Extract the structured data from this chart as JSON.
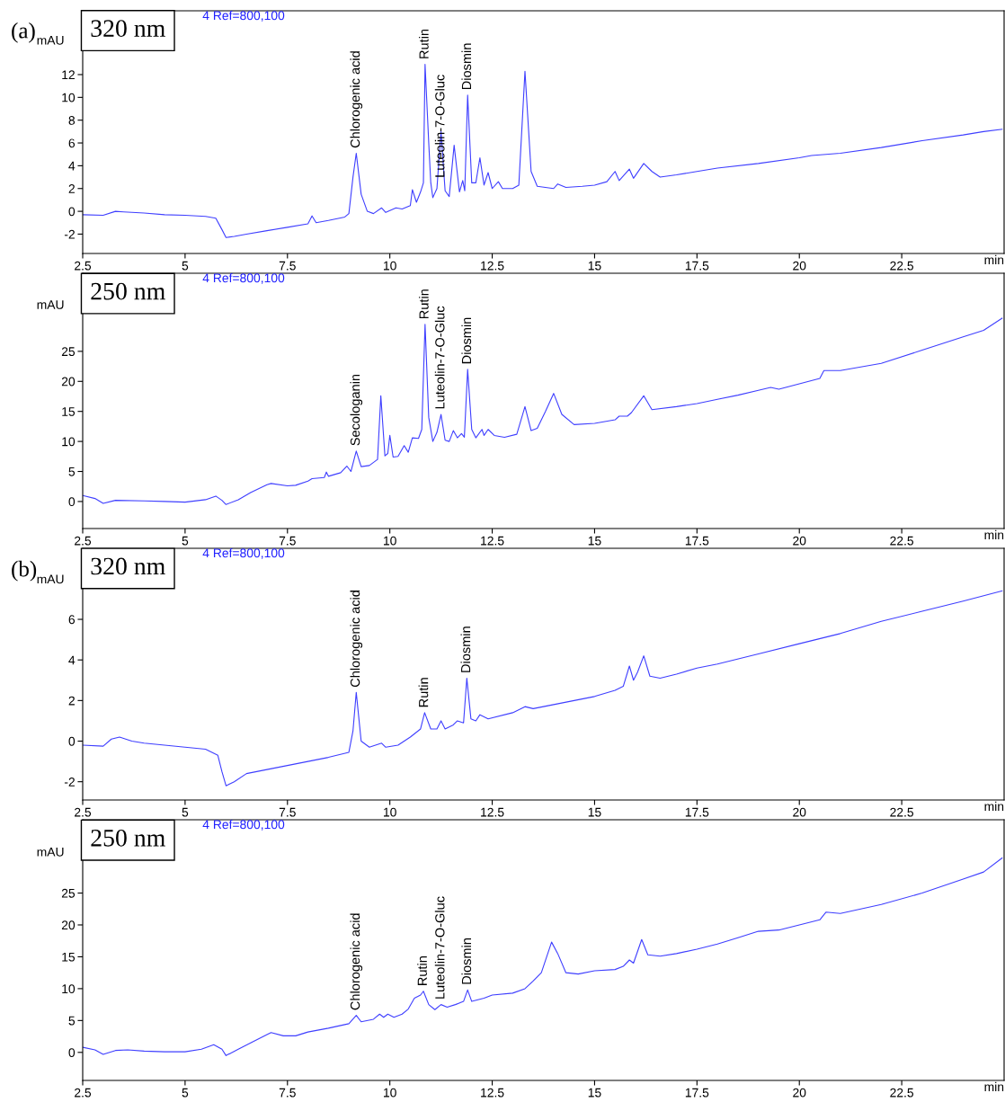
{
  "chart_data": [
    {
      "type": "line",
      "title": "320 nm",
      "subtitle": "(a)",
      "xlabel": "min",
      "ylabel": "mAU",
      "xlim": [
        2.5,
        25
      ],
      "xticks": [
        2.5,
        5,
        7.5,
        10,
        12.5,
        15,
        17.5,
        20,
        22.5
      ],
      "ylim": [
        -3.7,
        17.6
      ],
      "yticks": [
        -2,
        0,
        2,
        4,
        6,
        8,
        10,
        12
      ],
      "grid": false,
      "legend": false,
      "x": [
        2.5,
        3.0,
        3.3,
        3.5,
        4.0,
        4.5,
        5.0,
        5.5,
        5.75,
        5.9,
        6.0,
        6.2,
        6.5,
        7.0,
        7.5,
        8.0,
        8.1,
        8.2,
        8.5,
        8.9,
        9.0,
        9.1,
        9.18,
        9.3,
        9.45,
        9.6,
        9.8,
        9.9,
        10.15,
        10.3,
        10.5,
        10.55,
        10.65,
        10.75,
        10.82,
        10.86,
        10.95,
        11.0,
        11.05,
        11.15,
        11.25,
        11.35,
        11.45,
        11.57,
        11.7,
        11.78,
        11.83,
        11.9,
        12.0,
        12.1,
        12.2,
        12.3,
        12.4,
        12.5,
        12.65,
        12.75,
        13.0,
        13.15,
        13.3,
        13.45,
        13.6,
        14.0,
        14.1,
        14.3,
        14.7,
        15.0,
        15.3,
        15.5,
        15.6,
        15.85,
        15.95,
        16.2,
        16.4,
        16.6,
        17.0,
        17.5,
        18.0,
        19.0,
        20.0,
        20.3,
        21.0,
        22.0,
        23.0,
        24.0,
        24.5,
        24.95
      ],
      "series": [
        {
          "color": "#3f3fff",
          "values": [
            -0.3,
            -0.35,
            0.0,
            -0.05,
            -0.15,
            -0.3,
            -0.35,
            -0.45,
            -0.6,
            -1.6,
            -2.3,
            -2.2,
            -2.0,
            -1.7,
            -1.4,
            -1.1,
            -0.4,
            -1.0,
            -0.8,
            -0.5,
            -0.2,
            3.0,
            5.1,
            1.5,
            0.0,
            -0.2,
            0.3,
            -0.1,
            0.3,
            0.2,
            0.5,
            1.9,
            0.8,
            1.7,
            2.5,
            12.9,
            6.0,
            2.5,
            1.2,
            2.0,
            7.0,
            1.8,
            1.3,
            5.8,
            1.7,
            2.7,
            1.8,
            10.2,
            2.5,
            2.5,
            4.7,
            2.3,
            3.4,
            2.0,
            2.6,
            2.0,
            2.0,
            2.3,
            12.3,
            3.5,
            2.2,
            2.0,
            2.4,
            2.1,
            2.2,
            2.3,
            2.6,
            3.5,
            2.7,
            3.7,
            2.9,
            4.2,
            3.5,
            3.0,
            3.2,
            3.5,
            3.8,
            4.2,
            4.7,
            4.9,
            5.1,
            5.6,
            6.2,
            6.7,
            7.0,
            7.2
          ]
        }
      ],
      "annotations": [
        "4 Ref=800,100",
        {
          "text": "Chlorogenic acid",
          "x": 9.18,
          "y": 5.1
        },
        {
          "text": "Rutin",
          "x": 10.86,
          "y": 12.9
        },
        {
          "text": "Luteolin-7-O-Gluc",
          "x": 11.25,
          "y": 2.5
        },
        {
          "text": "Diosmin",
          "x": 11.9,
          "y": 10.2
        }
      ]
    },
    {
      "type": "line",
      "title": "250 nm",
      "xlabel": "min",
      "ylabel": "mAU",
      "xlim": [
        2.5,
        25
      ],
      "xticks": [
        2.5,
        5,
        7.5,
        10,
        12.5,
        15,
        17.5,
        20,
        22.5
      ],
      "ylim": [
        -4.5,
        38
      ],
      "yticks": [
        0,
        5,
        10,
        15,
        20,
        25
      ],
      "grid": false,
      "legend": false,
      "x": [
        2.5,
        2.8,
        3.0,
        3.3,
        4.0,
        4.5,
        5.0,
        5.5,
        5.75,
        5.9,
        6.0,
        6.3,
        6.6,
        7.0,
        7.1,
        7.5,
        7.7,
        8.0,
        8.1,
        8.4,
        8.45,
        8.5,
        8.8,
        8.95,
        9.05,
        9.18,
        9.3,
        9.5,
        9.7,
        9.78,
        9.88,
        9.95,
        10.0,
        10.08,
        10.2,
        10.35,
        10.45,
        10.55,
        10.7,
        10.78,
        10.86,
        10.95,
        11.05,
        11.15,
        11.25,
        11.35,
        11.45,
        11.55,
        11.65,
        11.75,
        11.82,
        11.9,
        12.0,
        12.1,
        12.25,
        12.3,
        12.4,
        12.55,
        12.8,
        13.1,
        13.3,
        13.45,
        13.6,
        13.8,
        14.0,
        14.2,
        14.5,
        15.0,
        15.5,
        15.6,
        15.8,
        15.9,
        16.2,
        16.4,
        17.0,
        17.5,
        18.0,
        18.5,
        19.0,
        19.3,
        19.5,
        20.0,
        20.5,
        20.6,
        21.0,
        22.0,
        23.0,
        24.0,
        24.5,
        24.95
      ],
      "series": [
        {
          "color": "#3f3fff",
          "values": [
            1.0,
            0.5,
            -0.3,
            0.2,
            0.1,
            0.0,
            -0.1,
            0.3,
            0.9,
            0.2,
            -0.5,
            0.3,
            1.5,
            2.8,
            3.0,
            2.6,
            2.7,
            3.4,
            3.8,
            4.0,
            4.9,
            4.2,
            4.8,
            5.9,
            5.0,
            8.4,
            5.8,
            6.0,
            7.0,
            17.6,
            7.6,
            8.0,
            11.0,
            7.4,
            7.5,
            9.3,
            8.2,
            10.6,
            10.5,
            12.0,
            29.5,
            14.0,
            10.0,
            11.5,
            14.5,
            10.2,
            10.0,
            11.8,
            10.6,
            11.3,
            10.7,
            22.0,
            12.0,
            10.6,
            12.0,
            11.0,
            12.0,
            11.0,
            10.7,
            11.2,
            15.8,
            11.8,
            12.2,
            15.0,
            18.0,
            14.5,
            12.8,
            13.0,
            13.6,
            14.2,
            14.2,
            14.8,
            17.6,
            15.3,
            15.8,
            16.3,
            17.0,
            17.7,
            18.5,
            19.0,
            18.7,
            19.6,
            20.5,
            21.8,
            21.8,
            23.0,
            25.2,
            27.4,
            28.5,
            30.5
          ]
        }
      ],
      "annotations": [
        "4 Ref=800,100",
        {
          "text": "Secologanin",
          "x": 9.18,
          "y": 8.4
        },
        {
          "text": "Rutin",
          "x": 10.86,
          "y": 29.5
        },
        {
          "text": "Luteolin-7-O-Gluc",
          "x": 11.25,
          "y": 14.5
        },
        {
          "text": "Diosmin",
          "x": 11.9,
          "y": 22.0
        }
      ]
    },
    {
      "type": "line",
      "title": "320 nm",
      "subtitle": "(b)",
      "xlabel": "min",
      "ylabel": "mAU",
      "xlim": [
        2.5,
        25
      ],
      "xticks": [
        2.5,
        5,
        7.5,
        10,
        12.5,
        15,
        17.5,
        20,
        22.5
      ],
      "ylim": [
        -2.9,
        9.5
      ],
      "yticks": [
        -2,
        0,
        2,
        4,
        6
      ],
      "grid": false,
      "legend": false,
      "x": [
        2.5,
        3.0,
        3.2,
        3.4,
        3.7,
        4.0,
        4.5,
        5.0,
        5.5,
        5.8,
        5.9,
        6.0,
        6.2,
        6.5,
        7.0,
        7.5,
        8.0,
        8.5,
        9.0,
        9.1,
        9.18,
        9.3,
        9.5,
        9.8,
        9.9,
        10.2,
        10.5,
        10.75,
        10.85,
        11.0,
        11.15,
        11.25,
        11.35,
        11.55,
        11.65,
        11.8,
        11.88,
        11.98,
        12.1,
        12.2,
        12.4,
        13.0,
        13.3,
        13.5,
        14.0,
        14.5,
        15.0,
        15.5,
        15.7,
        15.85,
        15.95,
        16.05,
        16.2,
        16.35,
        16.6,
        17.0,
        17.5,
        18.0,
        19.0,
        20.0,
        21.0,
        22.0,
        23.0,
        24.0,
        24.95
      ],
      "series": [
        {
          "color": "#3f3fff",
          "values": [
            -0.2,
            -0.25,
            0.1,
            0.2,
            0.0,
            -0.1,
            -0.2,
            -0.3,
            -0.4,
            -0.7,
            -1.5,
            -2.2,
            -2.0,
            -1.6,
            -1.4,
            -1.2,
            -1.0,
            -0.8,
            -0.55,
            0.5,
            2.4,
            0.0,
            -0.3,
            -0.1,
            -0.3,
            -0.2,
            0.2,
            0.6,
            1.4,
            0.6,
            0.6,
            1.0,
            0.6,
            0.8,
            1.0,
            0.9,
            3.1,
            1.1,
            1.0,
            1.3,
            1.1,
            1.4,
            1.7,
            1.6,
            1.8,
            2.0,
            2.2,
            2.5,
            2.7,
            3.7,
            3.0,
            3.4,
            4.2,
            3.2,
            3.1,
            3.3,
            3.6,
            3.8,
            4.3,
            4.8,
            5.3,
            5.9,
            6.4,
            6.9,
            7.4
          ]
        }
      ],
      "annotations": [
        "4 Ref=800,100",
        {
          "text": "Chlorogenic acid",
          "x": 9.18,
          "y": 2.4
        },
        {
          "text": "Rutin",
          "x": 10.85,
          "y": 1.4
        },
        {
          "text": "Diosmin",
          "x": 11.88,
          "y": 3.1
        }
      ]
    },
    {
      "type": "line",
      "title": "250 nm",
      "xlabel": "min",
      "ylabel": "mAU",
      "xlim": [
        2.5,
        25
      ],
      "xticks": [
        2.5,
        5,
        7.5,
        10,
        12.5,
        15,
        17.5,
        20,
        22.5
      ],
      "ylim": [
        -4.4,
        36.5
      ],
      "yticks": [
        0,
        5,
        10,
        15,
        20,
        25
      ],
      "grid": false,
      "legend": false,
      "x": [
        2.5,
        2.8,
        3.0,
        3.3,
        3.6,
        4.0,
        4.5,
        5.0,
        5.4,
        5.7,
        5.9,
        6.0,
        6.3,
        6.6,
        7.0,
        7.1,
        7.4,
        7.7,
        8.0,
        8.5,
        9.0,
        9.18,
        9.3,
        9.6,
        9.75,
        9.85,
        9.95,
        10.1,
        10.3,
        10.45,
        10.6,
        10.75,
        10.82,
        10.95,
        11.1,
        11.25,
        11.4,
        11.6,
        11.8,
        11.9,
        12.0,
        12.3,
        12.5,
        13.0,
        13.3,
        13.5,
        13.7,
        13.95,
        14.1,
        14.3,
        14.6,
        15.0,
        15.5,
        15.7,
        15.85,
        15.95,
        16.15,
        16.3,
        16.6,
        17.0,
        17.5,
        18.0,
        18.5,
        19.0,
        19.5,
        20.0,
        20.5,
        20.65,
        21.0,
        22.0,
        23.0,
        24.0,
        24.5,
        24.95
      ],
      "series": [
        {
          "color": "#3f3fff",
          "values": [
            0.8,
            0.4,
            -0.3,
            0.3,
            0.4,
            0.2,
            0.1,
            0.1,
            0.5,
            1.2,
            0.5,
            -0.5,
            0.5,
            1.5,
            2.8,
            3.1,
            2.6,
            2.6,
            3.2,
            3.8,
            4.5,
            5.8,
            4.8,
            5.2,
            6.0,
            5.5,
            6.0,
            5.5,
            6.0,
            6.8,
            8.5,
            9.0,
            9.6,
            7.5,
            6.7,
            7.5,
            7.1,
            7.5,
            8.0,
            9.8,
            8.0,
            8.5,
            9.0,
            9.3,
            10.0,
            11.2,
            12.5,
            17.3,
            15.5,
            12.5,
            12.3,
            12.8,
            13.0,
            13.5,
            14.5,
            14.0,
            17.7,
            15.3,
            15.1,
            15.5,
            16.2,
            17.0,
            18.0,
            19.0,
            19.2,
            20.0,
            20.8,
            22.0,
            21.8,
            23.2,
            25.0,
            27.2,
            28.3,
            30.5
          ]
        }
      ],
      "annotations": [
        "4 Ref=800,100",
        {
          "text": "Chlorogenic acid",
          "x": 9.18,
          "y": 5.8
        },
        {
          "text": "Rutin",
          "x": 10.82,
          "y": 9.6
        },
        {
          "text": "Luteolin-7-O-Gluc",
          "x": 11.25,
          "y": 7.5
        },
        {
          "text": "Diosmin",
          "x": 11.9,
          "y": 9.8
        }
      ]
    }
  ]
}
